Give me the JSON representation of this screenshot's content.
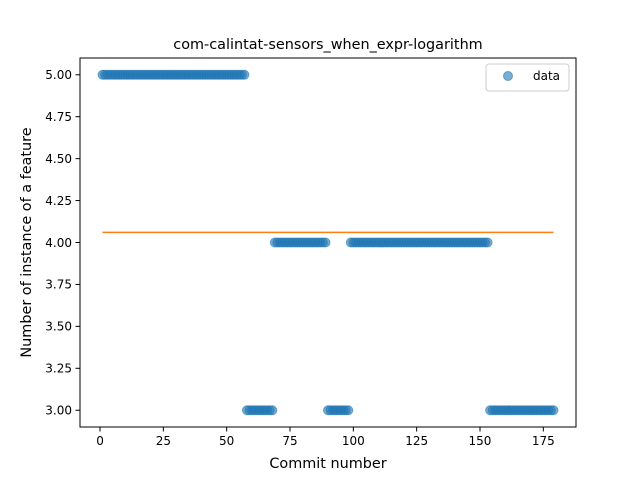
{
  "chart_data": {
    "type": "scatter",
    "title": "com-calintat-sensors_when_expr-logarithm",
    "xlabel": "Commit number",
    "ylabel": "Number of instance of a feature",
    "xlim": [
      -7.9,
      187.9
    ],
    "ylim": [
      2.9,
      5.1
    ],
    "xticks": [
      0,
      25,
      50,
      75,
      100,
      125,
      150,
      175
    ],
    "yticks": [
      3.0,
      3.25,
      3.5,
      3.75,
      4.0,
      4.25,
      4.5,
      4.75,
      5.0
    ],
    "xtick_labels": [
      "0",
      "25",
      "50",
      "75",
      "100",
      "125",
      "150",
      "175"
    ],
    "ytick_labels": [
      "3.00",
      "3.25",
      "3.50",
      "3.75",
      "4.00",
      "4.25",
      "4.50",
      "4.75",
      "5.00"
    ],
    "legend": {
      "position": "top-right",
      "entries": [
        "data"
      ]
    },
    "grid": false,
    "colors": {
      "data": "#1f77b4",
      "trend": "#ff7f0e"
    },
    "segments": [
      {
        "x_start": 1,
        "x_end": 57,
        "y": 5.0
      },
      {
        "x_start": 58,
        "x_end": 68,
        "y": 3.0
      },
      {
        "x_start": 69,
        "x_end": 89,
        "y": 4.0
      },
      {
        "x_start": 90,
        "x_end": 98,
        "y": 3.0
      },
      {
        "x_start": 99,
        "x_end": 153,
        "y": 4.0
      },
      {
        "x_start": 154,
        "x_end": 179,
        "y": 3.0
      }
    ],
    "series": [
      {
        "name": "data",
        "kind": "scatter"
      },
      {
        "kind": "line",
        "x": [
          1,
          179
        ],
        "y": [
          4.06,
          4.06
        ]
      }
    ]
  }
}
